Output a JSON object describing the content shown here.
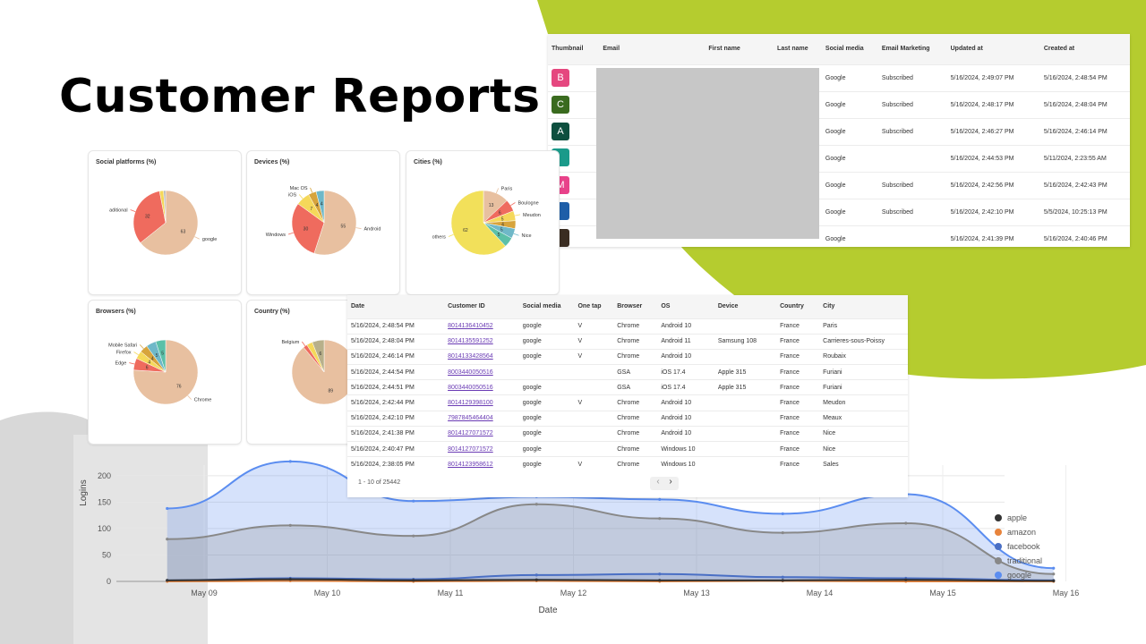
{
  "page": {
    "title": "Customer Reports"
  },
  "customers_table": {
    "headers": [
      "Thumbnail",
      "Email",
      "First name",
      "Last name",
      "Social media",
      "Email Marketing",
      "Updated at",
      "Created at"
    ],
    "rows": [
      {
        "thumb": "B",
        "color": "#e5477f",
        "social": "Google",
        "marketing": "Subscribed",
        "updated": "5/16/2024, 2:49:07 PM",
        "created": "5/16/2024, 2:48:54 PM"
      },
      {
        "thumb": "C",
        "color": "#3a6b1f",
        "social": "Google",
        "marketing": "Subscribed",
        "updated": "5/16/2024, 2:48:17 PM",
        "created": "5/16/2024, 2:48:04 PM"
      },
      {
        "thumb": "A",
        "color": "#0e4f3f",
        "social": "Google",
        "marketing": "Subscribed",
        "updated": "5/16/2024, 2:46:27 PM",
        "created": "5/16/2024, 2:46:14 PM"
      },
      {
        "thumb": "",
        "color": "#1a9a8a",
        "social": "Google",
        "marketing": "",
        "updated": "5/16/2024, 2:44:53 PM",
        "created": "5/11/2024, 2:23:55 AM"
      },
      {
        "thumb": "M",
        "color": "#e8428a",
        "social": "Google",
        "marketing": "Subscribed",
        "updated": "5/16/2024, 2:42:56 PM",
        "created": "5/16/2024, 2:42:43 PM"
      },
      {
        "thumb": "",
        "color": "#1e5ea8",
        "social": "Google",
        "marketing": "Subscribed",
        "updated": "5/16/2024, 2:42:10 PM",
        "created": "5/5/2024, 10:25:13 PM"
      },
      {
        "thumb": "",
        "color": "#3a2d22",
        "social": "Google",
        "marketing": "",
        "updated": "5/16/2024, 2:41:39 PM",
        "created": "5/16/2024, 2:40:46 PM"
      }
    ]
  },
  "pies": [
    {
      "title": "Social platforms (%)",
      "slices": [
        {
          "label": "google",
          "value": 63,
          "color": "#e8c0a0"
        },
        {
          "label": "aditional",
          "value": 32,
          "color": "#ef6b5e"
        },
        {
          "label": "",
          "value": 2,
          "color": "#f5d85a"
        },
        {
          "label": "",
          "value": 1,
          "color": "#b7b7b7"
        }
      ]
    },
    {
      "title": "Devices (%)",
      "slices": [
        {
          "label": "Android",
          "value": 55,
          "color": "#e8c0a0"
        },
        {
          "label": "Windows",
          "value": 30,
          "color": "#ef6b5e"
        },
        {
          "label": "iOS",
          "value": 7,
          "color": "#f5d85a"
        },
        {
          "label": "Mac OS",
          "value": 4,
          "color": "#d7a43c"
        },
        {
          "label": "",
          "value": 4,
          "color": "#6fb8c8"
        }
      ]
    },
    {
      "title": "Cities (%)",
      "slices": [
        {
          "label": "Paris",
          "value": 13,
          "color": "#e8c0a0"
        },
        {
          "label": "Boulogne",
          "value": 6,
          "color": "#ef6b5e"
        },
        {
          "label": "Meudon",
          "value": 5,
          "color": "#f5d85a"
        },
        {
          "label": "",
          "value": 4,
          "color": "#d7a43c"
        },
        {
          "label": "Nice",
          "value": 5,
          "color": "#6fb8c8"
        },
        {
          "label": "",
          "value": 5,
          "color": "#5cc0a8"
        },
        {
          "label": "others",
          "value": 62,
          "color": "#f2e05a"
        }
      ]
    },
    {
      "title": "Browsers (%)",
      "slices": [
        {
          "label": "Chrome",
          "value": 76,
          "color": "#e8c0a0"
        },
        {
          "label": "Edge",
          "value": 6,
          "color": "#ef6b5e"
        },
        {
          "label": "Firefox",
          "value": 4,
          "color": "#f5d85a"
        },
        {
          "label": "Mobile Safari",
          "value": 4,
          "color": "#d7a43c"
        },
        {
          "label": "",
          "value": 5,
          "color": "#6fb8c8"
        },
        {
          "label": "",
          "value": 5,
          "color": "#5cc0a8"
        }
      ]
    },
    {
      "title": "Country (%)",
      "slices": [
        {
          "label": "",
          "value": 89,
          "color": "#e8c0a0"
        },
        {
          "label": "Belgium",
          "value": 2,
          "color": "#ef6b5e"
        },
        {
          "label": "",
          "value": 3,
          "color": "#f5d85a"
        },
        {
          "label": "",
          "value": 6,
          "color": "#b8b08a"
        }
      ]
    }
  ],
  "logins_table": {
    "headers": [
      "Date",
      "Customer ID",
      "Social media",
      "One tap",
      "Browser",
      "OS",
      "Device",
      "Country",
      "City"
    ],
    "rows": [
      [
        "5/16/2024, 2:48:54 PM",
        "8014136410452",
        "google",
        "V",
        "Chrome",
        "Android 10",
        "",
        "France",
        "Paris"
      ],
      [
        "5/16/2024, 2:48:04 PM",
        "8014135591252",
        "google",
        "V",
        "Chrome",
        "Android 11",
        "Samsung 108",
        "France",
        "Carrieres-sous-Poissy"
      ],
      [
        "5/16/2024, 2:46:14 PM",
        "8014133428564",
        "google",
        "V",
        "Chrome",
        "Android 10",
        "",
        "France",
        "Roubaix"
      ],
      [
        "5/16/2024, 2:44:54 PM",
        "8003440050516",
        "",
        "",
        "GSA",
        "iOS 17.4",
        "Apple 315",
        "France",
        "Furiani"
      ],
      [
        "5/16/2024, 2:44:51 PM",
        "8003440050516",
        "google",
        "",
        "GSA",
        "iOS 17.4",
        "Apple 315",
        "France",
        "Furiani"
      ],
      [
        "5/16/2024, 2:42:44 PM",
        "8014129398100",
        "google",
        "V",
        "Chrome",
        "Android 10",
        "",
        "France",
        "Meudon"
      ],
      [
        "5/16/2024, 2:42:10 PM",
        "7987845464404",
        "google",
        "",
        "Chrome",
        "Android 10",
        "",
        "France",
        "Meaux"
      ],
      [
        "5/16/2024, 2:41:38 PM",
        "8014127071572",
        "google",
        "",
        "Chrome",
        "Android 10",
        "",
        "France",
        "Nice"
      ],
      [
        "5/16/2024, 2:40:47 PM",
        "8014127071572",
        "google",
        "",
        "Chrome",
        "Windows 10",
        "",
        "France",
        "Nice"
      ],
      [
        "5/16/2024, 2:38:05 PM",
        "8014123958612",
        "google",
        "V",
        "Chrome",
        "Windows 10",
        "",
        "France",
        "Sales"
      ]
    ],
    "pagination": "1 - 10 of 25442"
  },
  "chart_data": {
    "type": "area",
    "xlabel": "Date",
    "ylabel": "Logins",
    "x": [
      "May 09",
      "May 10",
      "May 11",
      "May 12",
      "May 13",
      "May 14",
      "May 15",
      "May 16"
    ],
    "ylim": [
      0,
      220
    ],
    "yticks": [
      0,
      50,
      100,
      150,
      200
    ],
    "legend_position": "right",
    "series": [
      {
        "name": "apple",
        "color": "#333333",
        "points": [
          [
            -0.3,
            2
          ],
          [
            0.7,
            4
          ],
          [
            1.7,
            2
          ],
          [
            2.7,
            3
          ],
          [
            3.7,
            2
          ],
          [
            4.7,
            2
          ],
          [
            5.7,
            3
          ],
          [
            6.9,
            1
          ]
        ]
      },
      {
        "name": "amazon",
        "color": "#e8843c",
        "points": [
          [
            -0.3,
            0
          ],
          [
            0.7,
            1
          ],
          [
            1.7,
            0
          ],
          [
            2.7,
            1
          ],
          [
            3.7,
            0
          ],
          [
            4.7,
            1
          ],
          [
            5.7,
            0
          ],
          [
            6.9,
            0
          ]
        ]
      },
      {
        "name": "facebook",
        "color": "#4a6fc4",
        "points": [
          [
            -0.3,
            2
          ],
          [
            0.7,
            6
          ],
          [
            1.7,
            4
          ],
          [
            2.7,
            12
          ],
          [
            3.7,
            14
          ],
          [
            4.7,
            8
          ],
          [
            5.7,
            6
          ],
          [
            6.9,
            2
          ]
        ]
      },
      {
        "name": "traditional",
        "color": "#888888",
        "points": [
          [
            -0.3,
            80
          ],
          [
            0.7,
            106
          ],
          [
            1.7,
            86
          ],
          [
            2.7,
            146
          ],
          [
            3.7,
            119
          ],
          [
            4.7,
            92
          ],
          [
            5.7,
            110
          ],
          [
            6.9,
            14
          ]
        ]
      },
      {
        "name": "google",
        "color": "#5b8df0",
        "points": [
          [
            -0.3,
            138
          ],
          [
            0.7,
            227
          ],
          [
            1.7,
            152
          ],
          [
            2.7,
            160
          ],
          [
            3.7,
            155
          ],
          [
            4.7,
            128
          ],
          [
            5.7,
            165
          ],
          [
            6.9,
            25
          ]
        ]
      }
    ]
  }
}
